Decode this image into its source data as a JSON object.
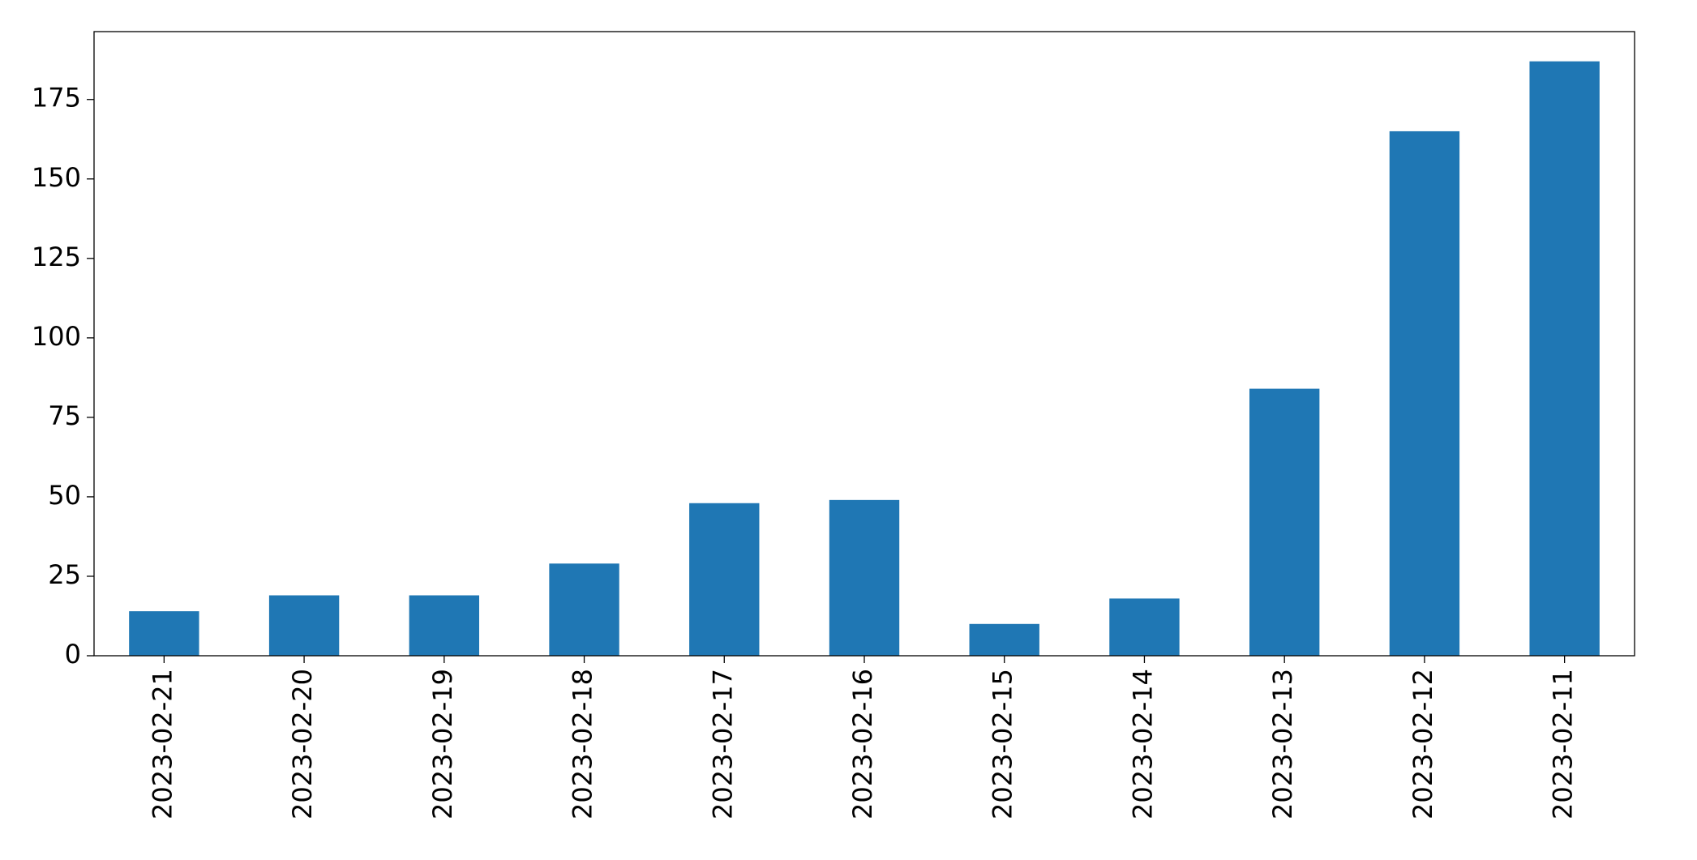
{
  "chart_data": {
    "type": "bar",
    "categories": [
      "2023-02-21",
      "2023-02-20",
      "2023-02-19",
      "2023-02-18",
      "2023-02-17",
      "2023-02-16",
      "2023-02-15",
      "2023-02-14",
      "2023-02-13",
      "2023-02-12",
      "2023-02-11"
    ],
    "values": [
      14,
      19,
      19,
      29,
      48,
      49,
      10,
      18,
      84,
      165,
      187
    ],
    "color": "#1f77b4",
    "ylim": [
      0,
      196.35
    ],
    "yticks": [
      0,
      25,
      50,
      75,
      100,
      125,
      150,
      175
    ],
    "grid": false
  }
}
